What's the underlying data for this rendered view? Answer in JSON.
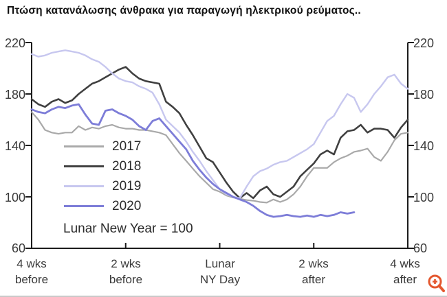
{
  "title": "Πτώση κατανάλωσης άνθρακα για παραγωγή ηλεκτρικού ρεύματος..",
  "chart_data": {
    "type": "line",
    "title": "Πτώση κατανάλωσης άνθρακα για παραγωγή ηλεκτρικού ρεύματος..",
    "note": "Lunar New Year = 100",
    "grid": false,
    "legend_position": "inside-left",
    "x_axis": {
      "unit": "days relative to Lunar New Year (4 weeks before to 4 weeks after)",
      "ticks": [
        {
          "line1": "4 wks",
          "line2": "before"
        },
        {
          "line1": "2 wks",
          "line2": "before"
        },
        {
          "line1": "Lunar",
          "line2": "NY Day"
        },
        {
          "line1": "2 wks",
          "line2": "after"
        },
        {
          "line1": "4 wks",
          "line2": "after"
        }
      ]
    },
    "y_axis": {
      "range": [
        60,
        220
      ],
      "ticks": [
        "220",
        "180",
        "140",
        "100",
        "60"
      ],
      "tick_values": [
        220,
        180,
        140,
        100,
        60
      ]
    },
    "axis_color": "#1b1b1b",
    "series": [
      {
        "name": "2017",
        "color": "#a9a9a9",
        "stroke_width": 2.2,
        "values": [
          166,
          160,
          152,
          150,
          149,
          150,
          150,
          155,
          152,
          154,
          153,
          155,
          156,
          154,
          153,
          153,
          152,
          152,
          151,
          150,
          148,
          141,
          134,
          128,
          122,
          116,
          111,
          106,
          104,
          101,
          99.5,
          98.5,
          97.5,
          97,
          96,
          95.5,
          98,
          96,
          98,
          102,
          108,
          116,
          122.5,
          122.5,
          122.5,
          127,
          130,
          132,
          135,
          136,
          137.5,
          131,
          128,
          135,
          144,
          149,
          150
        ]
      },
      {
        "name": "2018",
        "color": "#404040",
        "stroke_width": 2.6,
        "values": [
          176,
          172,
          170,
          174,
          176,
          173,
          175,
          180,
          184,
          188,
          190,
          193,
          196,
          199,
          201,
          196,
          192,
          190,
          189,
          188,
          174,
          170,
          165,
          156,
          148,
          139,
          130,
          127,
          119,
          111,
          104,
          99,
          103,
          99,
          105,
          108,
          102,
          100,
          104,
          108,
          116,
          121,
          126,
          133,
          136,
          133,
          146,
          151,
          152,
          156,
          150,
          153,
          153,
          152,
          146,
          154,
          160
        ]
      },
      {
        "name": "2019",
        "color": "#c7c7ef",
        "stroke_width": 2.4,
        "values": [
          211,
          209,
          210,
          212,
          213,
          214,
          213,
          212,
          210,
          207,
          205,
          201,
          196,
          192,
          190,
          189,
          186,
          184,
          181,
          172,
          160,
          155,
          150,
          143,
          135,
          128,
          120,
          113,
          106,
          102,
          100,
          99,
          108,
          116,
          120,
          122,
          125,
          127,
          128,
          131,
          134,
          137,
          141,
          150,
          159,
          163,
          172,
          180,
          177,
          166,
          172,
          180,
          186,
          193,
          195,
          188,
          184
        ]
      },
      {
        "name": "2020",
        "color": "#7d7dd8",
        "stroke_width": 2.8,
        "values": [
          168,
          166,
          165,
          168,
          170,
          169,
          171,
          172,
          164,
          157,
          156,
          167,
          168,
          165,
          163,
          160,
          155,
          152,
          159,
          161,
          155,
          149,
          143,
          137,
          128,
          121,
          115,
          110,
          106,
          103,
          100,
          98,
          96,
          93,
          89,
          86,
          84.5,
          85,
          86,
          85,
          84.5,
          85.5,
          84.5,
          86,
          85,
          86,
          88,
          87,
          88
        ]
      }
    ]
  },
  "icons": {
    "zoom_icon": "magnifier-plus",
    "zoom_icon_color": "#e4572e"
  }
}
